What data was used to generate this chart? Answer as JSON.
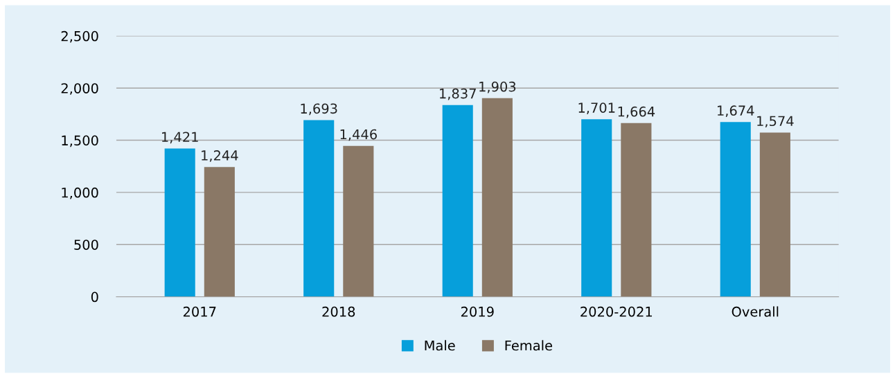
{
  "chart_data": {
    "type": "bar",
    "categories": [
      "2017",
      "2018",
      "2019",
      "2020-2021",
      "Overall"
    ],
    "series": [
      {
        "name": "Male",
        "color": "#069fdb",
        "values": [
          1421,
          1693,
          1837,
          1701,
          1674
        ],
        "value_labels": [
          "1,421",
          "1,693",
          "1,837",
          "1,701",
          "1,674"
        ]
      },
      {
        "name": "Female",
        "color": "#8a7866",
        "values": [
          1244,
          1446,
          1903,
          1664,
          1574
        ],
        "value_labels": [
          "1,244",
          "1,446",
          "1,903",
          "1,664",
          "1,574"
        ]
      }
    ],
    "ylim": [
      0,
      2500
    ],
    "yticks": [
      {
        "value": 0,
        "label": "0"
      },
      {
        "value": 500,
        "label": "500"
      },
      {
        "value": 1000,
        "label": "1,000"
      },
      {
        "value": 1500,
        "label": "1,500"
      },
      {
        "value": 2000,
        "label": "2,000"
      },
      {
        "value": 2500,
        "label": "2,500"
      }
    ],
    "grid": "y",
    "legend": "bottom"
  }
}
